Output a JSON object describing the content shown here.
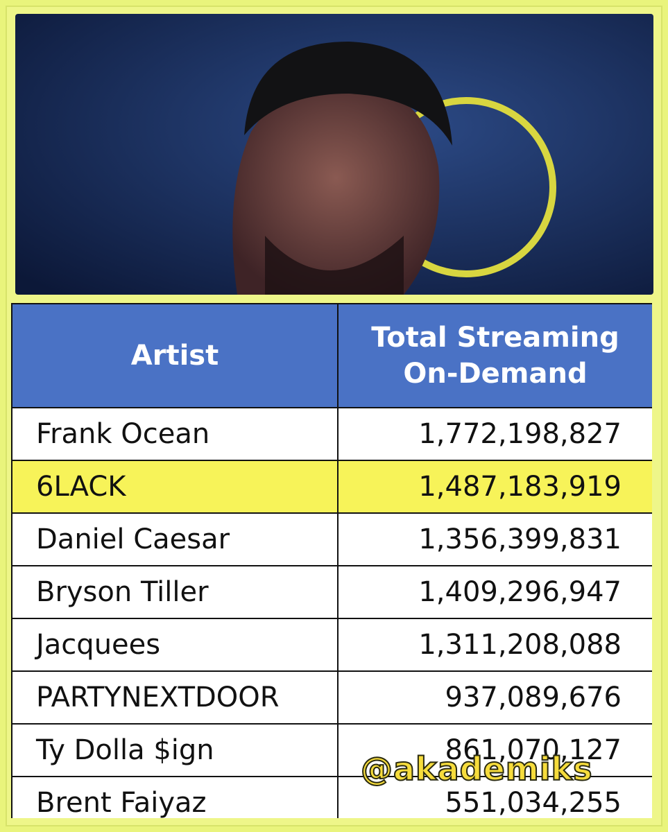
{
  "table": {
    "header": [
      "Artist",
      "Total Streaming On-Demand"
    ],
    "rows": [
      [
        "Frank Ocean",
        "1,772,198,827"
      ],
      [
        "6LACK",
        "1,487,183,919"
      ],
      [
        "Daniel Caesar",
        "1,356,399,831"
      ],
      [
        "Bryson Tiller",
        "1,409,296,947"
      ],
      [
        "Jacquees",
        "1,311,208,088"
      ],
      [
        "PARTYNEXTDOOR",
        "937,089,676"
      ],
      [
        "Ty Dolla $ign",
        "861,070,127"
      ],
      [
        "Brent Faiyaz",
        "551,034,255"
      ]
    ]
  },
  "watermark": "@akademiks"
}
